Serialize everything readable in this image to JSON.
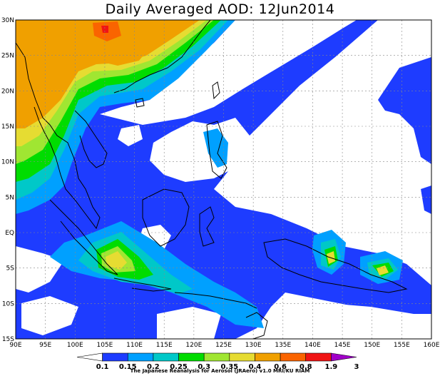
{
  "title": "Daily Averaged AOD: 12Jun2014",
  "credit": "The Japanese Reanalysis for Aerosol (JRAero) v1.0 MRI/KU RIAM",
  "map": {
    "lon_range": [
      90,
      160
    ],
    "lat_range": [
      -15,
      30
    ],
    "lon_labels": [
      "90E",
      "95E",
      "100E",
      "105E",
      "110E",
      "115E",
      "120E",
      "125E",
      "130E",
      "135E",
      "140E",
      "145E",
      "150E",
      "155E",
      "160E"
    ],
    "lat_labels": [
      "15S",
      "10S",
      "5S",
      "EQ",
      "5N",
      "10N",
      "15N",
      "20N",
      "25N",
      "30N"
    ],
    "grid": "dotted"
  },
  "colorbar": {
    "levels": [
      "0.1",
      "0.15",
      "0.2",
      "0.25",
      "0.3",
      "0.35",
      "0.4",
      "0.6",
      "0.8",
      "1.9",
      "3"
    ],
    "colors": [
      "#ffffff",
      "#1e3cff",
      "#00a0ff",
      "#00c8c8",
      "#00dc00",
      "#a0e632",
      "#e6dc32",
      "#f0a000",
      "#fa6400",
      "#f01414",
      "#a000c8"
    ]
  },
  "palette": {
    "below": "#ffffff",
    "c015": "#1e3cff",
    "c02": "#00a0ff",
    "c025": "#00c8c8",
    "c03": "#00dc00",
    "c035": "#a0e632",
    "c04": "#e6dc32",
    "c06": "#f0a000",
    "c08": "#fa6400",
    "c19": "#f01414"
  }
}
